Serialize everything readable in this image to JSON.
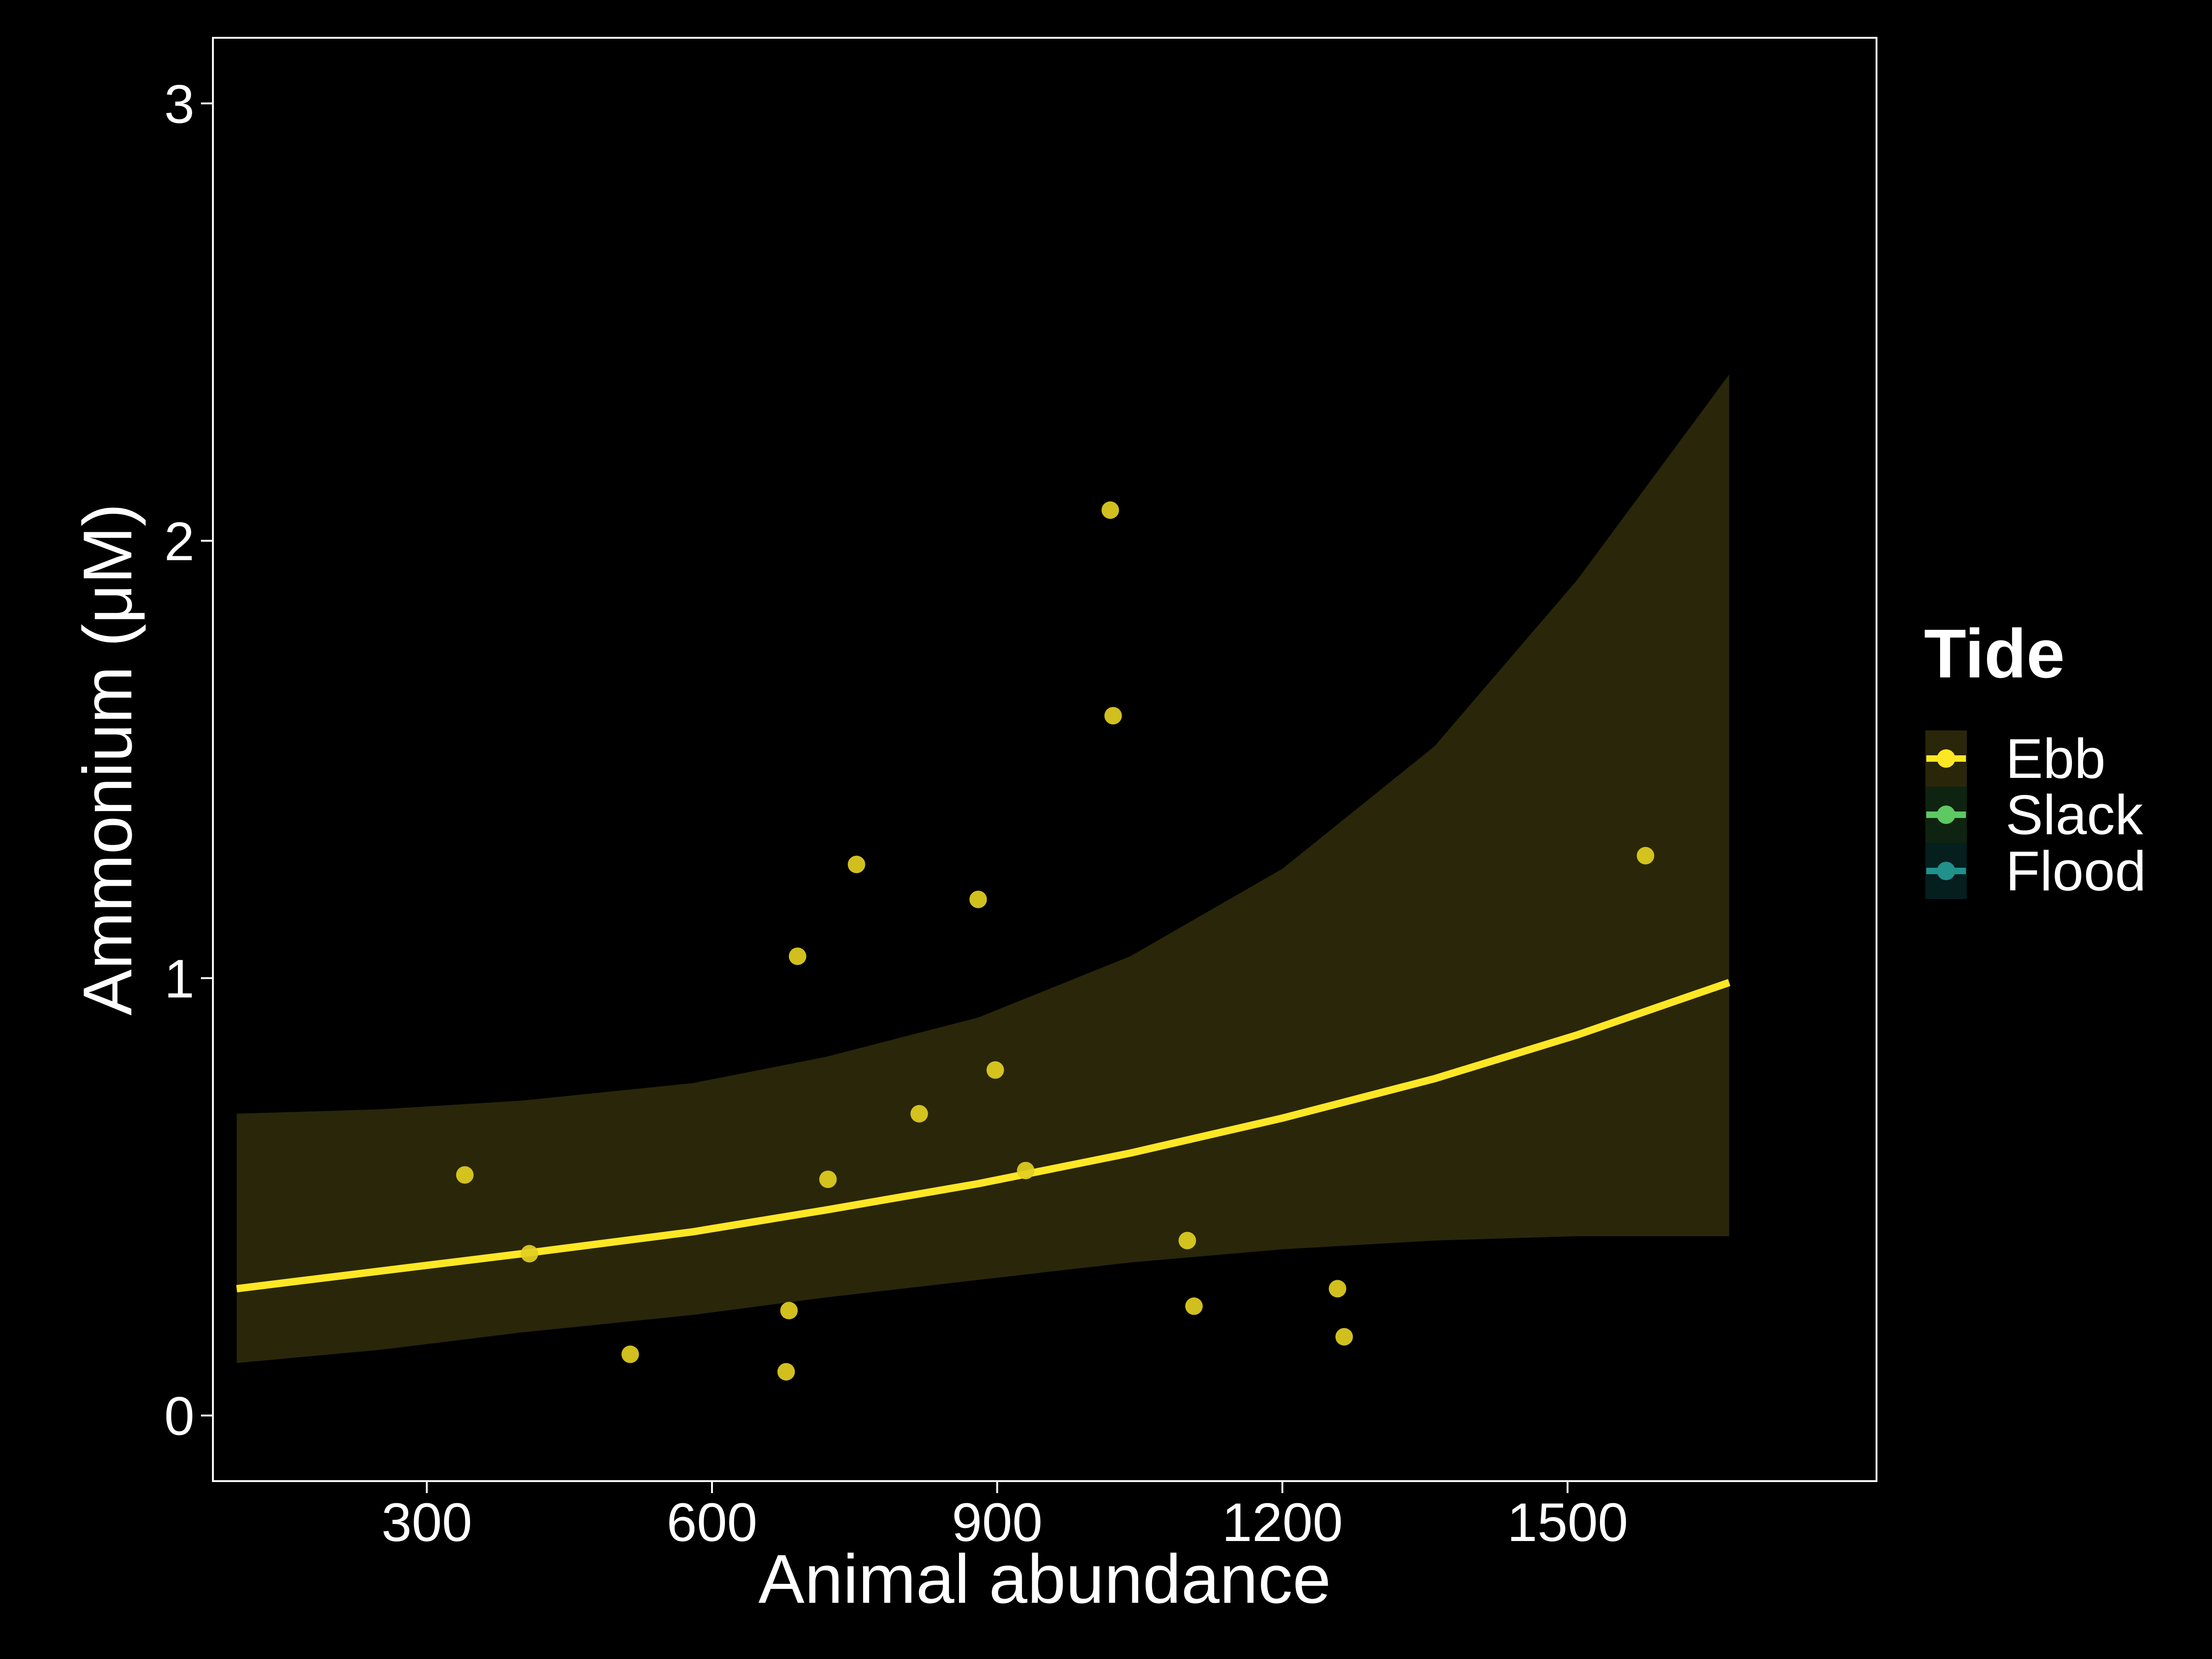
{
  "chart_data": {
    "type": "scatter",
    "xlabel": "Animal abundance",
    "ylabel": "Ammonium (μM)",
    "xlim": [
      75,
      1825
    ],
    "ylim": [
      -0.15,
      3.15
    ],
    "xticks": [
      300,
      600,
      900,
      1200,
      1500
    ],
    "yticks": [
      0,
      1,
      2,
      3
    ],
    "grid": false,
    "legend": {
      "title": "Tide",
      "position": "right",
      "entries": [
        {
          "label": "Ebb",
          "color": "#FDE725"
        },
        {
          "label": "Slack",
          "color": "#5EC962"
        },
        {
          "label": "Flood",
          "color": "#21918C"
        }
      ]
    },
    "series": [
      {
        "name": "Ebb",
        "color": "#FDE725",
        "points": [
          [
            340,
            0.55
          ],
          [
            408,
            0.37
          ],
          [
            514,
            0.14
          ],
          [
            678,
            0.1
          ],
          [
            681,
            0.24
          ],
          [
            690,
            1.05
          ],
          [
            722,
            0.54
          ],
          [
            752,
            1.26
          ],
          [
            818,
            0.69
          ],
          [
            880,
            1.18
          ],
          [
            898,
            0.79
          ],
          [
            930,
            0.56
          ],
          [
            1019,
            2.07
          ],
          [
            1022,
            1.6
          ],
          [
            1100,
            0.4
          ],
          [
            1107,
            0.25
          ],
          [
            1258,
            0.29
          ],
          [
            1265,
            0.18
          ],
          [
            1582,
            1.28
          ]
        ],
        "fit": {
          "x": [
            100,
            250,
            400,
            580,
            720,
            880,
            1040,
            1200,
            1360,
            1510,
            1670
          ],
          "y": [
            0.29,
            0.33,
            0.37,
            0.42,
            0.47,
            0.53,
            0.6,
            0.68,
            0.77,
            0.87,
            0.99
          ],
          "lower": [
            0.12,
            0.15,
            0.19,
            0.23,
            0.27,
            0.31,
            0.35,
            0.38,
            0.4,
            0.41,
            0.41
          ],
          "upper": [
            0.69,
            0.7,
            0.72,
            0.76,
            0.82,
            0.91,
            1.05,
            1.25,
            1.53,
            1.91,
            2.38
          ]
        }
      }
    ]
  }
}
